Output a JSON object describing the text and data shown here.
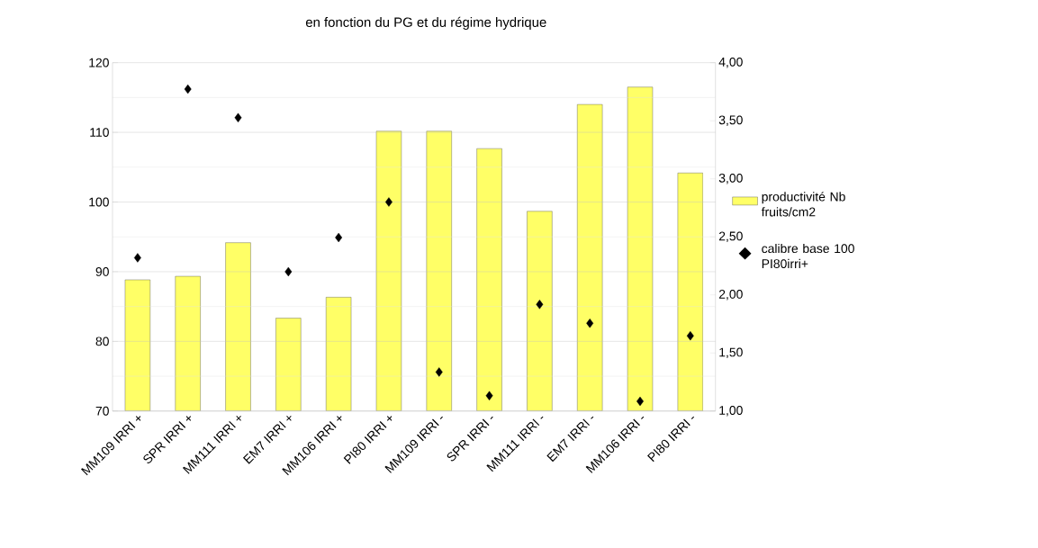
{
  "chart_data": {
    "type": "bar",
    "title": "en fonction du PG et du régime hydrique",
    "categories": [
      "MM109 IRRI +",
      "SPR IRRI +",
      "MM111 IRRI +",
      "EM7 IRRI +",
      "MM106 IRRI +",
      "PI80 IRRI +",
      "MM109 IRRI -",
      "SPR IRRI -",
      "MM111 IRRI -",
      "EM7 IRRI -",
      "MM106 IRRI -",
      "PI80 IRRI -"
    ],
    "series": [
      {
        "name": "productivité Nb fruits/cm2",
        "type": "bar",
        "axis": "y2",
        "color": "#ffff66",
        "values": [
          2.13,
          2.16,
          2.45,
          1.8,
          1.98,
          3.41,
          3.41,
          3.26,
          2.72,
          3.64,
          3.79,
          3.05
        ]
      },
      {
        "name": "calibre base 100 PI80irri+",
        "type": "scatter",
        "marker": "diamond",
        "color": "#000000",
        "values": [
          92.0,
          116.2,
          112.1,
          90.0,
          94.9,
          100.0,
          75.6,
          72.2,
          85.3,
          82.6,
          71.4,
          80.8
        ]
      }
    ],
    "ylim": [
      70,
      120
    ],
    "yticks": [
      70,
      80,
      90,
      100,
      110,
      120
    ],
    "y2lim": [
      1,
      4
    ],
    "y2ticks": [
      {
        "value": 1,
        "label": "1,00"
      },
      {
        "value": 1.5,
        "label": "1,50"
      },
      {
        "value": 2,
        "label": "2,00"
      },
      {
        "value": 2.5,
        "label": "2,50"
      },
      {
        "value": 3,
        "label": "3,00"
      },
      {
        "value": 3.5,
        "label": "3,50"
      },
      {
        "value": 4,
        "label": "4,00"
      }
    ],
    "grid": "y",
    "legend": "right"
  }
}
